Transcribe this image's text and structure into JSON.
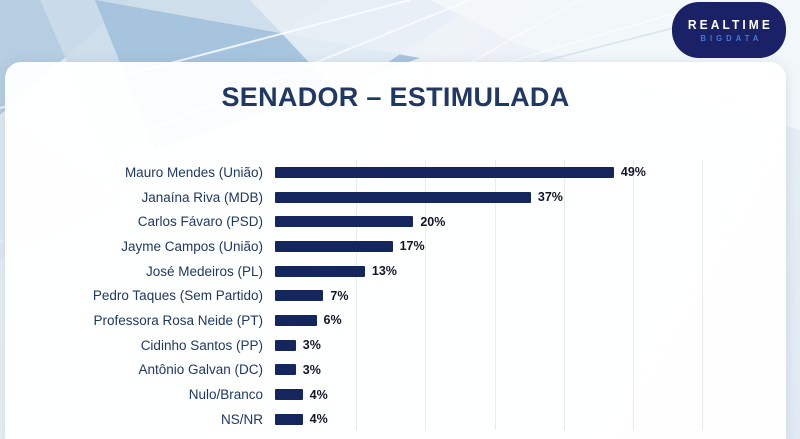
{
  "title": "SENADOR – ESTIMULADA",
  "logo": {
    "line1": "REALTIME",
    "line2": "BIGDATA"
  },
  "colors": {
    "bar": "#15265E",
    "title_text": "#1F3864",
    "label_text": "#1F3864",
    "value_text": "#12162A",
    "gridline": "#E9EBEE",
    "logo_bg": "#1B2166",
    "logo_line1": "#FFFFFF",
    "logo_line2": "#4577D9"
  },
  "chart_data": {
    "type": "bar",
    "orientation": "horizontal",
    "title": "SENADOR – ESTIMULADA",
    "categories": [
      "Mauro Mendes (União)",
      "Janaína Riva (MDB)",
      "Carlos Fávaro (PSD)",
      "Jayme Campos (União)",
      "José Medeiros (PL)",
      "Pedro Taques (Sem Partido)",
      "Professora Rosa Neide (PT)",
      "Cidinho Santos (PP)",
      "Antônio Galvan (DC)",
      "Nulo/Branco",
      "NS/NR"
    ],
    "values": [
      49,
      37,
      20,
      17,
      13,
      7,
      6,
      3,
      3,
      4,
      4
    ],
    "value_labels": [
      "49%",
      "37%",
      "20%",
      "17%",
      "13%",
      "7%",
      "6%",
      "3%",
      "3%",
      "4%",
      "4%"
    ],
    "unit": "%",
    "xlim": [
      0,
      60
    ],
    "gridline_interval": 10,
    "grid": true,
    "legend": false,
    "value_labels_shown": true
  }
}
